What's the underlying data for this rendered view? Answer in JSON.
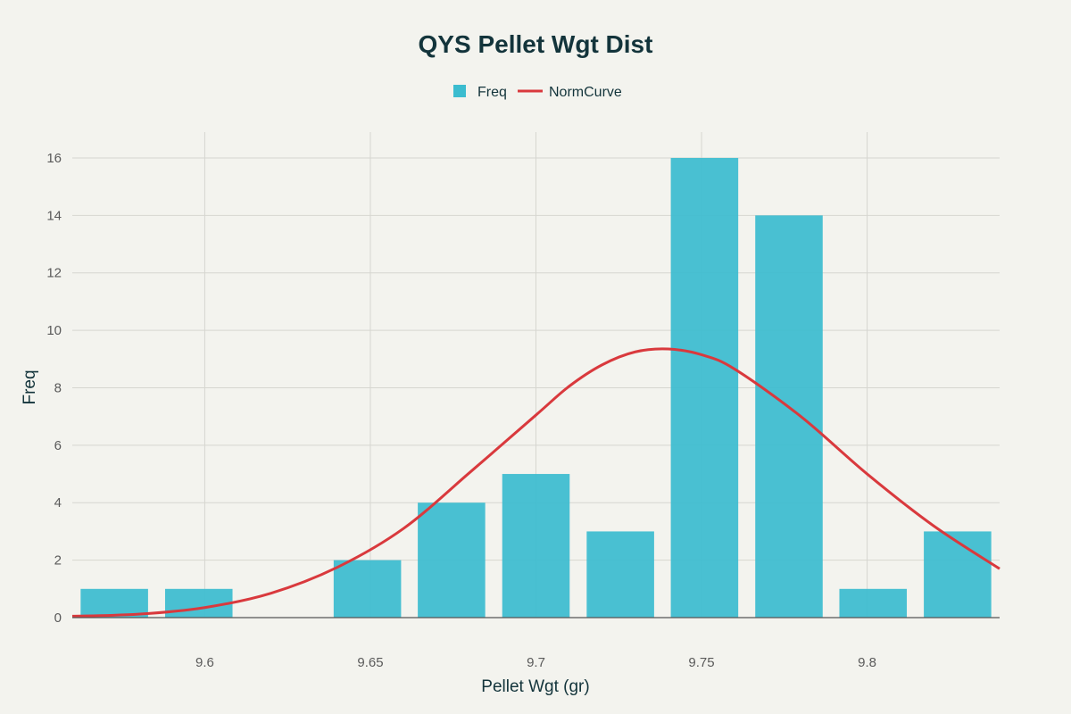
{
  "chart_data": {
    "type": "bar",
    "title": "QYS Pellet Wgt Dist",
    "xlabel": "Pellet Wgt (gr)",
    "ylabel": "Freq",
    "xlim": [
      9.56,
      9.84
    ],
    "ylim": [
      0,
      16.9
    ],
    "x_ticks": [
      "9.6",
      "9.65",
      "9.7",
      "9.75",
      "9.8"
    ],
    "x_tick_values": [
      9.6,
      9.65,
      9.7,
      9.75,
      9.8
    ],
    "y_ticks": [
      "0",
      "2",
      "4",
      "6",
      "8",
      "10",
      "12",
      "14",
      "16"
    ],
    "y_tick_values": [
      0,
      2,
      4,
      6,
      8,
      10,
      12,
      14,
      16
    ],
    "bin_width": 0.02545,
    "bins": [
      {
        "center": 9.5727,
        "value": 1
      },
      {
        "center": 9.5982,
        "value": 1
      },
      {
        "center": 9.6236,
        "value": 0
      },
      {
        "center": 9.6491,
        "value": 2
      },
      {
        "center": 9.6745,
        "value": 4
      },
      {
        "center": 9.7,
        "value": 5
      },
      {
        "center": 9.7255,
        "value": 3
      },
      {
        "center": 9.7509,
        "value": 16
      },
      {
        "center": 9.7764,
        "value": 14
      },
      {
        "center": 9.8018,
        "value": 1
      },
      {
        "center": 9.8273,
        "value": 3
      }
    ],
    "series": [
      {
        "name": "Freq",
        "type": "bar",
        "color": "#3bbccf"
      },
      {
        "name": "NormCurve",
        "type": "line",
        "color": "#d9393d",
        "x": [
          9.56,
          9.58,
          9.6,
          9.62,
          9.64,
          9.66,
          9.68,
          9.7,
          9.71,
          9.72,
          9.73,
          9.74,
          9.75,
          9.76,
          9.78,
          9.8,
          9.82,
          9.84
        ],
        "y": [
          0.05,
          0.12,
          0.35,
          0.85,
          1.75,
          3.1,
          5.05,
          7.05,
          8.05,
          8.8,
          9.25,
          9.35,
          9.15,
          8.65,
          7.0,
          5.0,
          3.2,
          1.7
        ]
      }
    ],
    "grid": true,
    "legend_position": "top-center"
  }
}
